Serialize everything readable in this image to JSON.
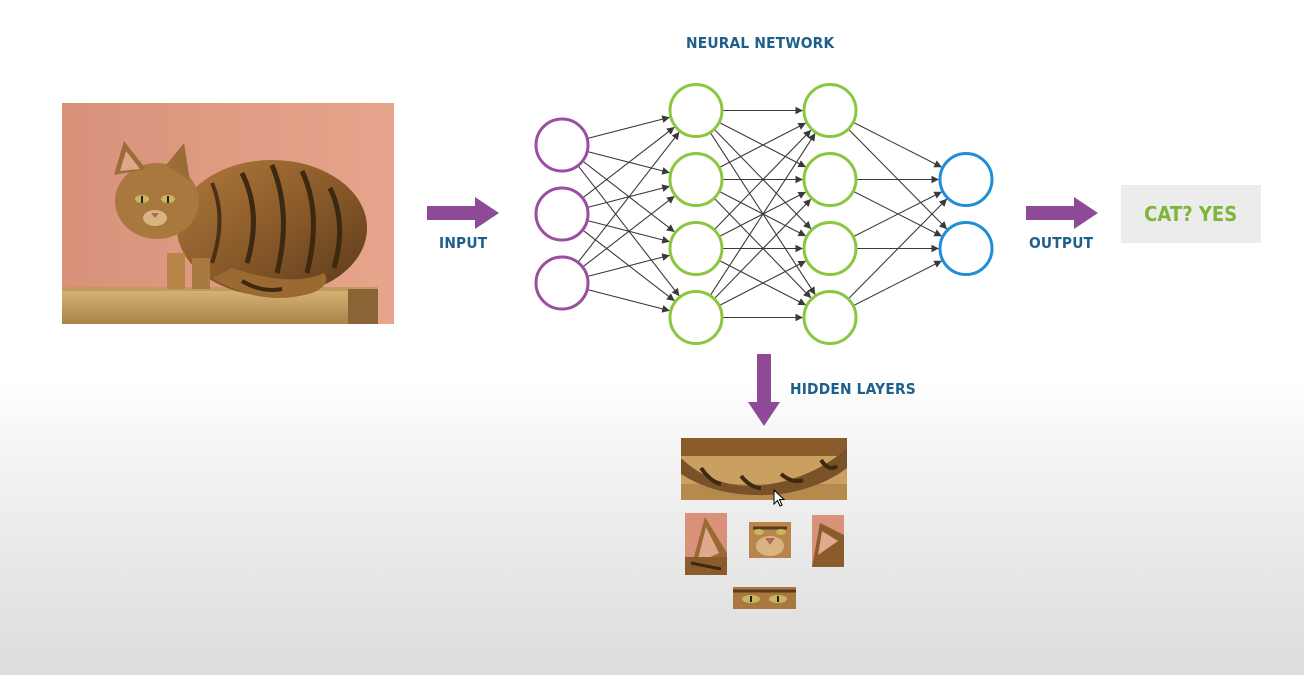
{
  "title": "NEURAL NETWORK",
  "labels": {
    "input": "INPUT",
    "output": "OUTPUT",
    "hidden_layers": "HIDDEN LAYERS"
  },
  "result": "CAT? YES",
  "colors": {
    "label_blue": "#1f5f8b",
    "arrow_purple": "#8e4a97",
    "input_node": "#9a4ea1",
    "hidden_node": "#8cc63f",
    "output_node": "#1e8ed6",
    "result_green": "#7fb539",
    "edge": "#3a3a3a"
  },
  "network": {
    "layers": [
      {
        "role": "input",
        "nodes": 3
      },
      {
        "role": "hidden",
        "nodes": 4
      },
      {
        "role": "hidden",
        "nodes": 4
      },
      {
        "role": "output",
        "nodes": 2
      }
    ]
  },
  "images": {
    "main": "cat-photo",
    "feature_crops": [
      "cat-tail-crop",
      "cat-ear-crop",
      "cat-nose-crop",
      "cat-ear-right-crop",
      "cat-eyes-crop"
    ]
  }
}
